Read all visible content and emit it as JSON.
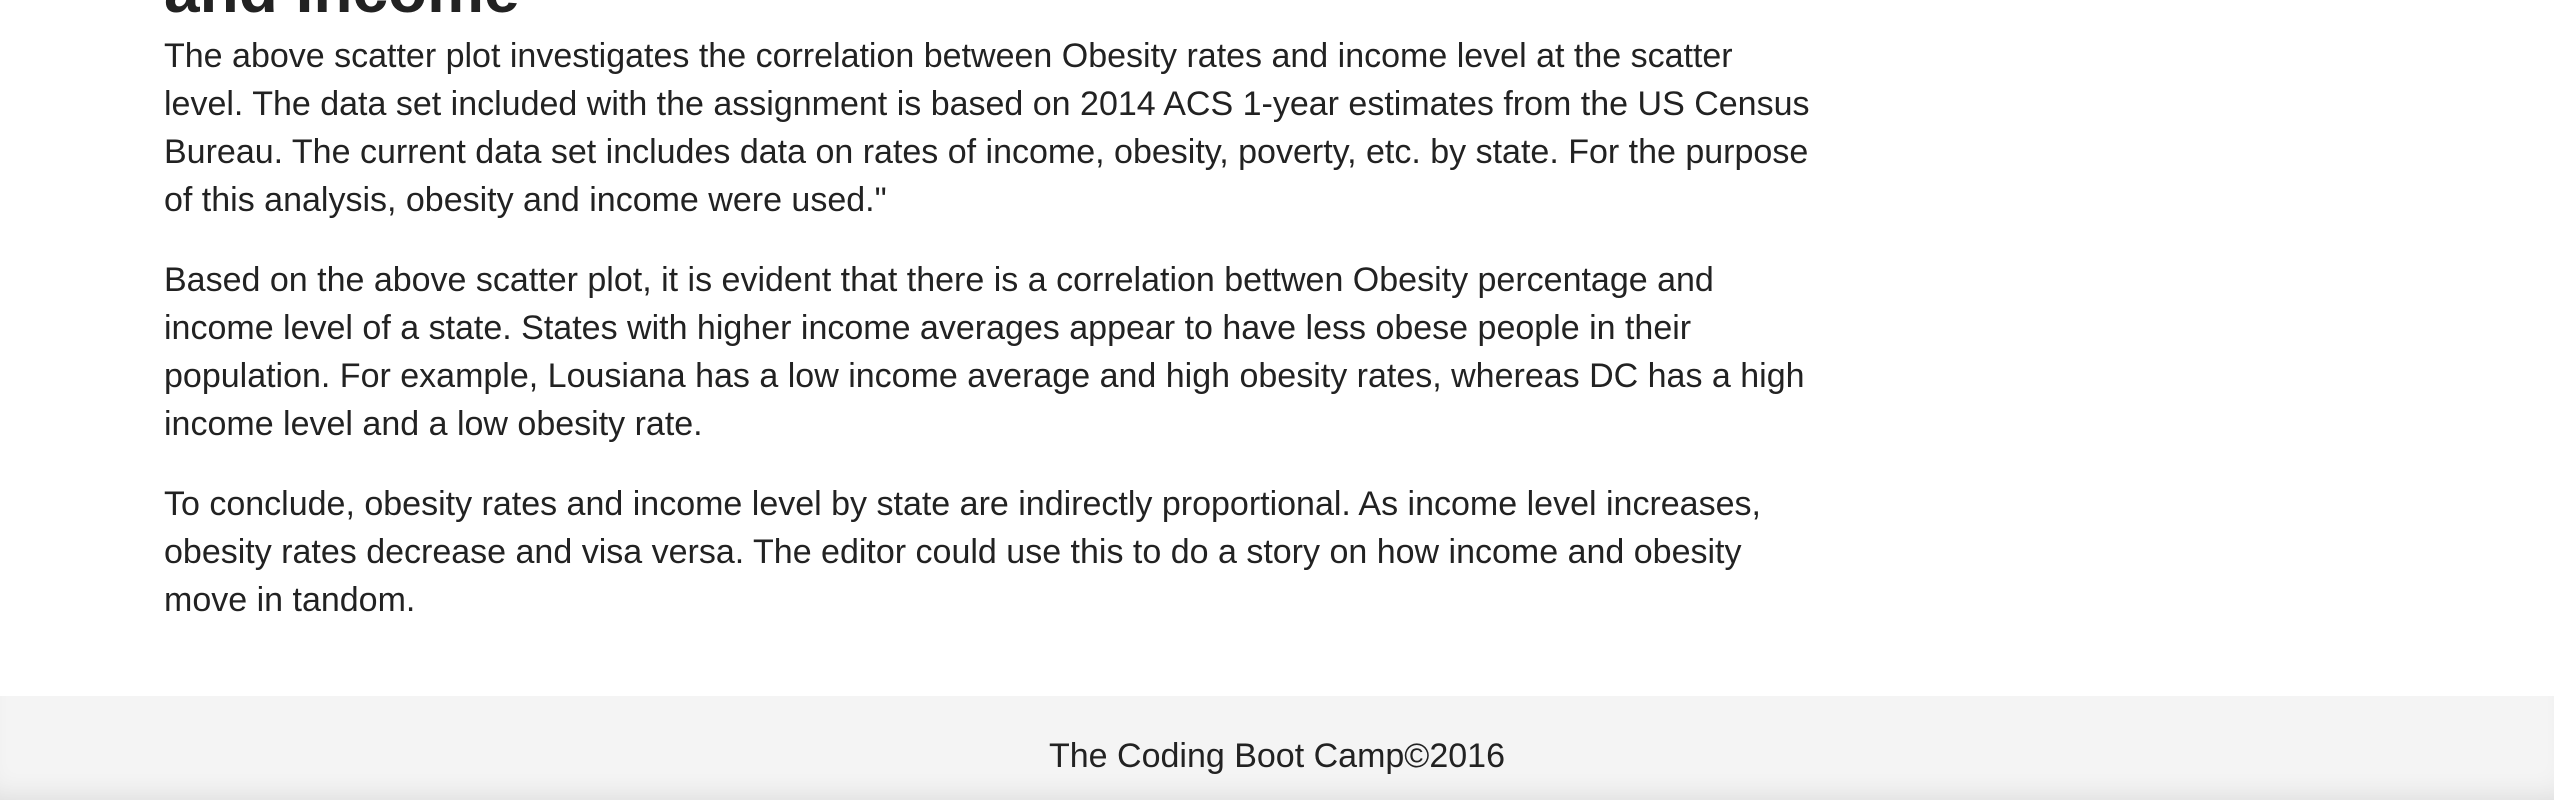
{
  "article": {
    "heading_partial": "and Income",
    "paragraphs": [
      "The above scatter plot investigates the correlation between Obesity rates and income level at the scatter level. The data set included with the assignment is based on 2014 ACS 1-year estimates from the US Census Bureau. The current data set includes data on rates of income, obesity, poverty, etc. by state. For the purpose of this analysis, obesity and income were used.\"",
      "Based on the above scatter plot, it is evident that there is a correlation bettwen Obesity percentage and income level of a state. States with higher income averages appear to have less obese people in their population. For example, Lousiana has a low income average and high obesity rates, whereas DC has a high income level and a low obesity rate.",
      "To conclude, obesity rates and income level by state are indirectly proportional. As income level increases, obesity rates decrease and visa versa. The editor could use this to do a story on how income and obesity move in tandom."
    ]
  },
  "footer": {
    "text": "The Coding Boot Camp©2016"
  }
}
